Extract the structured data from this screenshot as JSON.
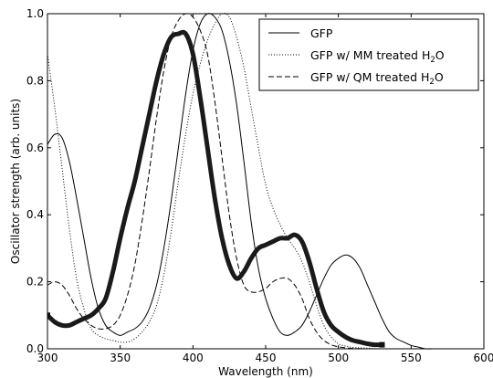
{
  "chart_data": {
    "type": "line",
    "xlabel": "Wavelength (nm)",
    "ylabel": "Oscillator strength (arb. units)",
    "xlim": [
      300,
      600
    ],
    "ylim": [
      0.0,
      1.0
    ],
    "xticks": [
      "300",
      "350",
      "400",
      "450",
      "500",
      "550",
      "600"
    ],
    "yticks": [
      "0.0",
      "0.2",
      "0.4",
      "0.6",
      "0.8",
      "1.0"
    ],
    "grid": false,
    "legend_position": "top-right",
    "series": [
      {
        "name": "GFP",
        "style": "solid",
        "color": "#000000",
        "x": [
          300,
          305,
          310,
          315,
          320,
          325,
          330,
          335,
          340,
          345,
          350,
          355,
          360,
          365,
          370,
          375,
          380,
          385,
          390,
          395,
          400,
          405,
          410,
          415,
          420,
          425,
          430,
          435,
          440,
          445,
          450,
          455,
          460,
          465,
          470,
          475,
          480,
          485,
          490,
          495,
          500,
          505,
          510,
          515,
          520,
          525,
          530,
          535,
          540,
          545,
          550,
          555,
          560,
          565,
          570,
          580,
          590,
          600
        ],
        "y": [
          0.61,
          0.64,
          0.63,
          0.56,
          0.45,
          0.33,
          0.21,
          0.12,
          0.07,
          0.05,
          0.04,
          0.05,
          0.06,
          0.08,
          0.12,
          0.19,
          0.3,
          0.44,
          0.6,
          0.76,
          0.89,
          0.97,
          1.0,
          0.99,
          0.95,
          0.86,
          0.73,
          0.56,
          0.38,
          0.24,
          0.15,
          0.09,
          0.05,
          0.04,
          0.05,
          0.07,
          0.11,
          0.16,
          0.21,
          0.25,
          0.27,
          0.28,
          0.27,
          0.24,
          0.19,
          0.14,
          0.09,
          0.05,
          0.03,
          0.02,
          0.01,
          0.005,
          0.0,
          0.0,
          0.0,
          0.0,
          0.0,
          0.0
        ]
      },
      {
        "name": "GFP w/ MM treated H₂O",
        "style": "dotted",
        "color": "#000000",
        "x": [
          300,
          305,
          310,
          315,
          320,
          325,
          330,
          335,
          340,
          345,
          350,
          355,
          360,
          365,
          370,
          375,
          380,
          385,
          390,
          395,
          400,
          405,
          410,
          415,
          420,
          425,
          430,
          435,
          440,
          445,
          450,
          455,
          460,
          465,
          470,
          475,
          480,
          485,
          490,
          495,
          500,
          505,
          510,
          520,
          530,
          550,
          570,
          600
        ],
        "y": [
          0.88,
          0.72,
          0.54,
          0.36,
          0.21,
          0.12,
          0.06,
          0.04,
          0.03,
          0.025,
          0.02,
          0.02,
          0.03,
          0.05,
          0.08,
          0.13,
          0.22,
          0.35,
          0.5,
          0.64,
          0.76,
          0.85,
          0.92,
          0.97,
          1.0,
          0.99,
          0.93,
          0.84,
          0.72,
          0.6,
          0.49,
          0.42,
          0.37,
          0.33,
          0.3,
          0.26,
          0.2,
          0.13,
          0.07,
          0.035,
          0.015,
          0.008,
          0.004,
          0.002,
          0.0,
          0.0,
          0.0,
          0.0
        ]
      },
      {
        "name": "GFP w/ QM treated H₂O",
        "style": "dashed",
        "color": "#000000",
        "x": [
          300,
          305,
          310,
          315,
          320,
          325,
          330,
          335,
          340,
          345,
          350,
          355,
          360,
          365,
          370,
          375,
          380,
          385,
          390,
          395,
          400,
          405,
          410,
          415,
          420,
          425,
          430,
          435,
          440,
          445,
          450,
          455,
          460,
          465,
          470,
          475,
          480,
          485,
          490,
          495,
          500,
          505,
          510,
          520,
          530,
          550,
          600
        ],
        "y": [
          0.19,
          0.2,
          0.19,
          0.16,
          0.12,
          0.09,
          0.07,
          0.06,
          0.06,
          0.07,
          0.1,
          0.16,
          0.25,
          0.38,
          0.53,
          0.69,
          0.83,
          0.93,
          0.98,
          1.0,
          0.99,
          0.95,
          0.88,
          0.74,
          0.57,
          0.4,
          0.27,
          0.19,
          0.17,
          0.17,
          0.18,
          0.2,
          0.21,
          0.21,
          0.19,
          0.15,
          0.09,
          0.05,
          0.025,
          0.012,
          0.006,
          0.003,
          0.001,
          0.0,
          0.0,
          0.0,
          0.0
        ]
      },
      {
        "name": "",
        "style": "thick",
        "color": "#111111",
        "x": [
          300,
          305,
          310,
          315,
          320,
          325,
          330,
          335,
          340,
          345,
          350,
          355,
          360,
          365,
          370,
          375,
          380,
          385,
          390,
          395,
          400,
          405,
          410,
          415,
          420,
          425,
          430,
          435,
          440,
          445,
          450,
          455,
          460,
          465,
          470,
          475,
          480,
          485,
          490,
          495,
          500,
          505,
          510,
          515,
          520,
          525,
          530
        ],
        "y": [
          0.1,
          0.08,
          0.07,
          0.07,
          0.08,
          0.09,
          0.1,
          0.12,
          0.15,
          0.23,
          0.33,
          0.42,
          0.5,
          0.6,
          0.7,
          0.8,
          0.88,
          0.93,
          0.94,
          0.94,
          0.88,
          0.75,
          0.6,
          0.45,
          0.33,
          0.25,
          0.21,
          0.23,
          0.27,
          0.3,
          0.31,
          0.32,
          0.33,
          0.33,
          0.34,
          0.32,
          0.26,
          0.18,
          0.11,
          0.07,
          0.05,
          0.035,
          0.025,
          0.02,
          0.015,
          0.012,
          0.012
        ]
      }
    ],
    "legend": [
      {
        "label": "GFP",
        "suffix": "",
        "style": "solid"
      },
      {
        "label": "GFP w/ MM treated H",
        "suffix": "O",
        "style": "dotted"
      },
      {
        "label": "GFP w/ QM treated H",
        "suffix": "O",
        "style": "dashed"
      }
    ],
    "legend_subscript": "2"
  }
}
